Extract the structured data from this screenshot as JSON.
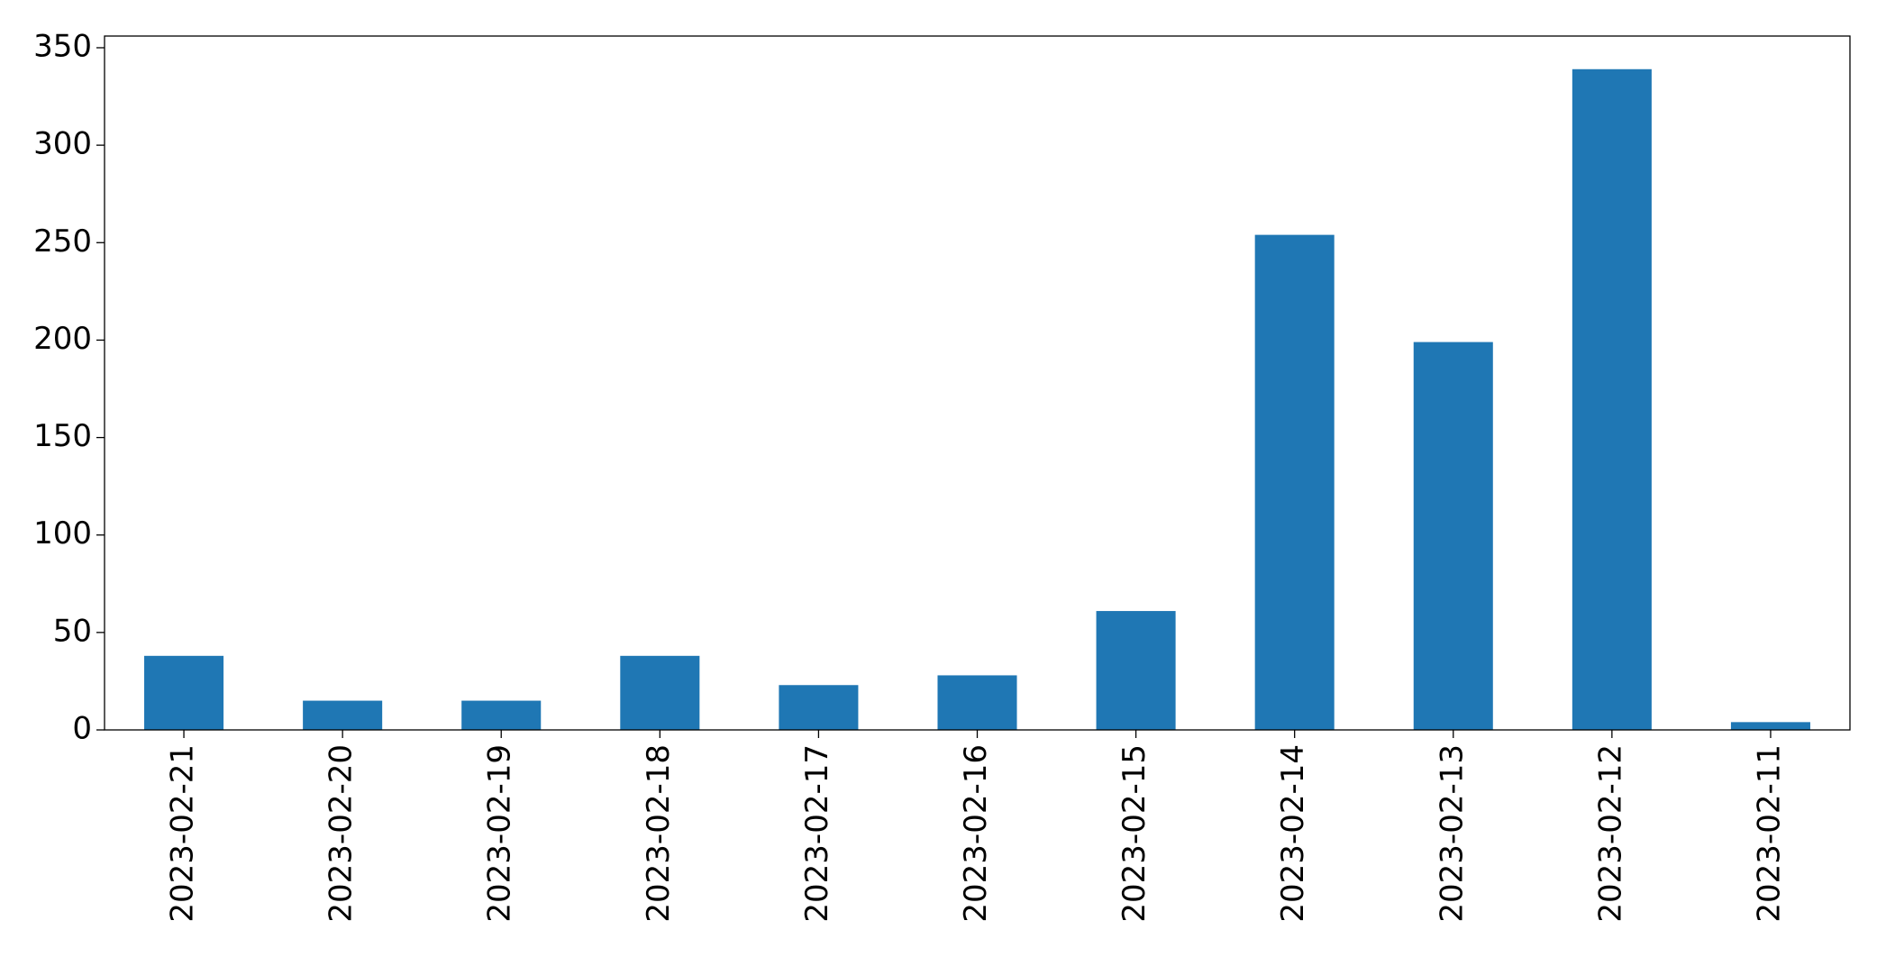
{
  "chart_data": {
    "type": "bar",
    "categories": [
      "2023-02-21",
      "2023-02-20",
      "2023-02-19",
      "2023-02-18",
      "2023-02-17",
      "2023-02-16",
      "2023-02-15",
      "2023-02-14",
      "2023-02-13",
      "2023-02-12",
      "2023-02-11"
    ],
    "values": [
      38,
      15,
      15,
      38,
      23,
      28,
      61,
      254,
      199,
      339,
      4
    ],
    "color": "#1f77b4",
    "ylim": [
      0,
      356
    ],
    "yticks": [
      0,
      50,
      100,
      150,
      200,
      250,
      300,
      350
    ],
    "grid": false
  }
}
